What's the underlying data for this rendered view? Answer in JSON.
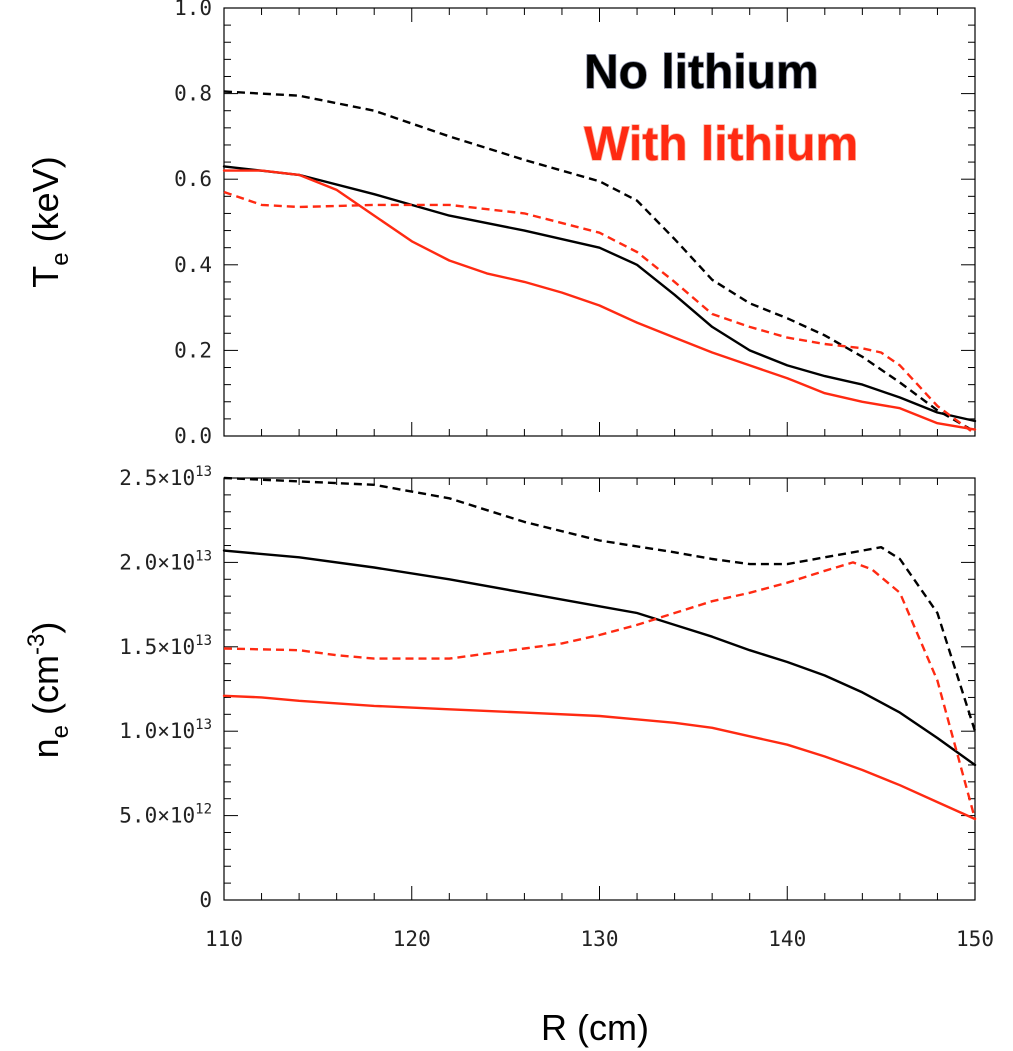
{
  "colors": {
    "no_lithium": "#000000",
    "with_lithium": "#ff2a12"
  },
  "legend": {
    "no_lithium": "No lithium",
    "with_lithium": "With lithium"
  },
  "x_axis_title": "R (cm)",
  "chart_data": [
    {
      "type": "line",
      "id": "te",
      "ylabel_main": "T",
      "ylabel_sub": "e",
      "ylabel_unit": " (keV)",
      "xlim": [
        110,
        150
      ],
      "ylim": [
        0,
        1.0
      ],
      "yticks": [
        {
          "v": 0.0,
          "label": "0.0"
        },
        {
          "v": 0.2,
          "label": "0.2"
        },
        {
          "v": 0.4,
          "label": "0.4"
        },
        {
          "v": 0.6,
          "label": "0.6"
        },
        {
          "v": 0.8,
          "label": "0.8"
        },
        {
          "v": 1.0,
          "label": "1.0"
        }
      ],
      "series": [
        {
          "key": "no_lithium",
          "style": "dashed",
          "x": [
            110,
            114,
            118,
            122,
            126,
            130,
            132,
            134,
            136,
            138,
            140,
            142,
            144,
            146,
            148,
            150
          ],
          "y": [
            0.805,
            0.795,
            0.76,
            0.7,
            0.645,
            0.595,
            0.55,
            0.46,
            0.365,
            0.31,
            0.275,
            0.235,
            0.185,
            0.125,
            0.06,
            0.01
          ]
        },
        {
          "key": "no_lithium",
          "style": "solid",
          "x": [
            110,
            114,
            118,
            122,
            126,
            130,
            132,
            134,
            136,
            138,
            140,
            142,
            144,
            146,
            148,
            150
          ],
          "y": [
            0.63,
            0.61,
            0.565,
            0.515,
            0.48,
            0.44,
            0.4,
            0.33,
            0.255,
            0.2,
            0.165,
            0.14,
            0.12,
            0.09,
            0.055,
            0.035
          ]
        },
        {
          "key": "with_lithium",
          "style": "dashed",
          "x": [
            110,
            112,
            114,
            118,
            122,
            126,
            130,
            132,
            134,
            136,
            138,
            140,
            142,
            144,
            145,
            146,
            148,
            150
          ],
          "y": [
            0.57,
            0.54,
            0.535,
            0.54,
            0.54,
            0.52,
            0.475,
            0.43,
            0.36,
            0.285,
            0.255,
            0.23,
            0.215,
            0.205,
            0.195,
            0.165,
            0.07,
            0.005
          ]
        },
        {
          "key": "with_lithium",
          "style": "solid",
          "x": [
            110,
            112,
            114,
            116,
            118,
            120,
            122,
            124,
            126,
            128,
            130,
            132,
            134,
            136,
            138,
            140,
            142,
            144,
            146,
            148,
            150
          ],
          "y": [
            0.62,
            0.62,
            0.61,
            0.575,
            0.515,
            0.455,
            0.41,
            0.38,
            0.36,
            0.335,
            0.305,
            0.265,
            0.23,
            0.195,
            0.165,
            0.135,
            0.1,
            0.08,
            0.065,
            0.03,
            0.015
          ]
        }
      ]
    },
    {
      "type": "line",
      "id": "ne",
      "ylabel_main": "n",
      "ylabel_sub": "e",
      "ylabel_unit": " (cm",
      "ylabel_sup": "-3",
      "ylabel_close": ")",
      "xlim": [
        110,
        150
      ],
      "ylim": [
        0,
        25000000000000.0
      ],
      "yticks": [
        {
          "v": 0,
          "mant": "0",
          "exp": ""
        },
        {
          "v": 5000000000000.0,
          "mant": "5.0×10",
          "exp": "12"
        },
        {
          "v": 10000000000000.0,
          "mant": "1.0×10",
          "exp": "13"
        },
        {
          "v": 15000000000000.0,
          "mant": "1.5×10",
          "exp": "13"
        },
        {
          "v": 20000000000000.0,
          "mant": "2.0×10",
          "exp": "13"
        },
        {
          "v": 25000000000000.0,
          "mant": "2.5×10",
          "exp": "13"
        }
      ],
      "xticks": [
        {
          "v": 110,
          "label": "110"
        },
        {
          "v": 120,
          "label": "120"
        },
        {
          "v": 130,
          "label": "130"
        },
        {
          "v": 140,
          "label": "140"
        },
        {
          "v": 150,
          "label": "150"
        }
      ],
      "series": [
        {
          "key": "no_lithium",
          "style": "dashed",
          "x": [
            110,
            114,
            118,
            122,
            126,
            130,
            134,
            136,
            138,
            140,
            142,
            144,
            145,
            146,
            148,
            150
          ],
          "y": [
            25000000000000.0,
            24800000000000.0,
            24600000000000.0,
            23800000000000.0,
            22400000000000.0,
            21300000000000.0,
            20600000000000.0,
            20200000000000.0,
            19900000000000.0,
            19900000000000.0,
            20300000000000.0,
            20700000000000.0,
            20900000000000.0,
            20200000000000.0,
            17000000000000.0,
            10000000000000.0
          ]
        },
        {
          "key": "no_lithium",
          "style": "solid",
          "x": [
            110,
            114,
            118,
            122,
            126,
            130,
            132,
            134,
            136,
            138,
            140,
            142,
            144,
            146,
            148,
            150
          ],
          "y": [
            20700000000000.0,
            20300000000000.0,
            19700000000000.0,
            19000000000000.0,
            18200000000000.0,
            17400000000000.0,
            17000000000000.0,
            16300000000000.0,
            15600000000000.0,
            14800000000000.0,
            14100000000000.0,
            13300000000000.0,
            12300000000000.0,
            11100000000000.0,
            9600000000000.0,
            8000000000000.0
          ]
        },
        {
          "key": "with_lithium",
          "style": "dashed",
          "x": [
            110,
            114,
            116,
            118,
            120,
            122,
            124,
            126,
            128,
            130,
            132,
            134,
            136,
            138,
            140,
            142,
            143.5,
            144.5,
            146,
            148,
            150
          ],
          "y": [
            14900000000000.0,
            14800000000000.0,
            14500000000000.0,
            14300000000000.0,
            14300000000000.0,
            14300000000000.0,
            14600000000000.0,
            14900000000000.0,
            15200000000000.0,
            15700000000000.0,
            16300000000000.0,
            17000000000000.0,
            17700000000000.0,
            18200000000000.0,
            18800000000000.0,
            19500000000000.0,
            20000000000000.0,
            19600000000000.0,
            18200000000000.0,
            13000000000000.0,
            4800000000000.0
          ]
        },
        {
          "key": "with_lithium",
          "style": "solid",
          "x": [
            110,
            112,
            114,
            118,
            122,
            126,
            130,
            134,
            136,
            138,
            140,
            142,
            144,
            146,
            148,
            150
          ],
          "y": [
            12100000000000.0,
            12000000000000.0,
            11800000000000.0,
            11500000000000.0,
            11300000000000.0,
            11100000000000.0,
            10900000000000.0,
            10500000000000.0,
            10200000000000.0,
            9700000000000.0,
            9200000000000.0,
            8500000000000.0,
            7700000000000.0,
            6800000000000.0,
            5800000000000.0,
            4800000000000.0
          ]
        }
      ]
    }
  ]
}
